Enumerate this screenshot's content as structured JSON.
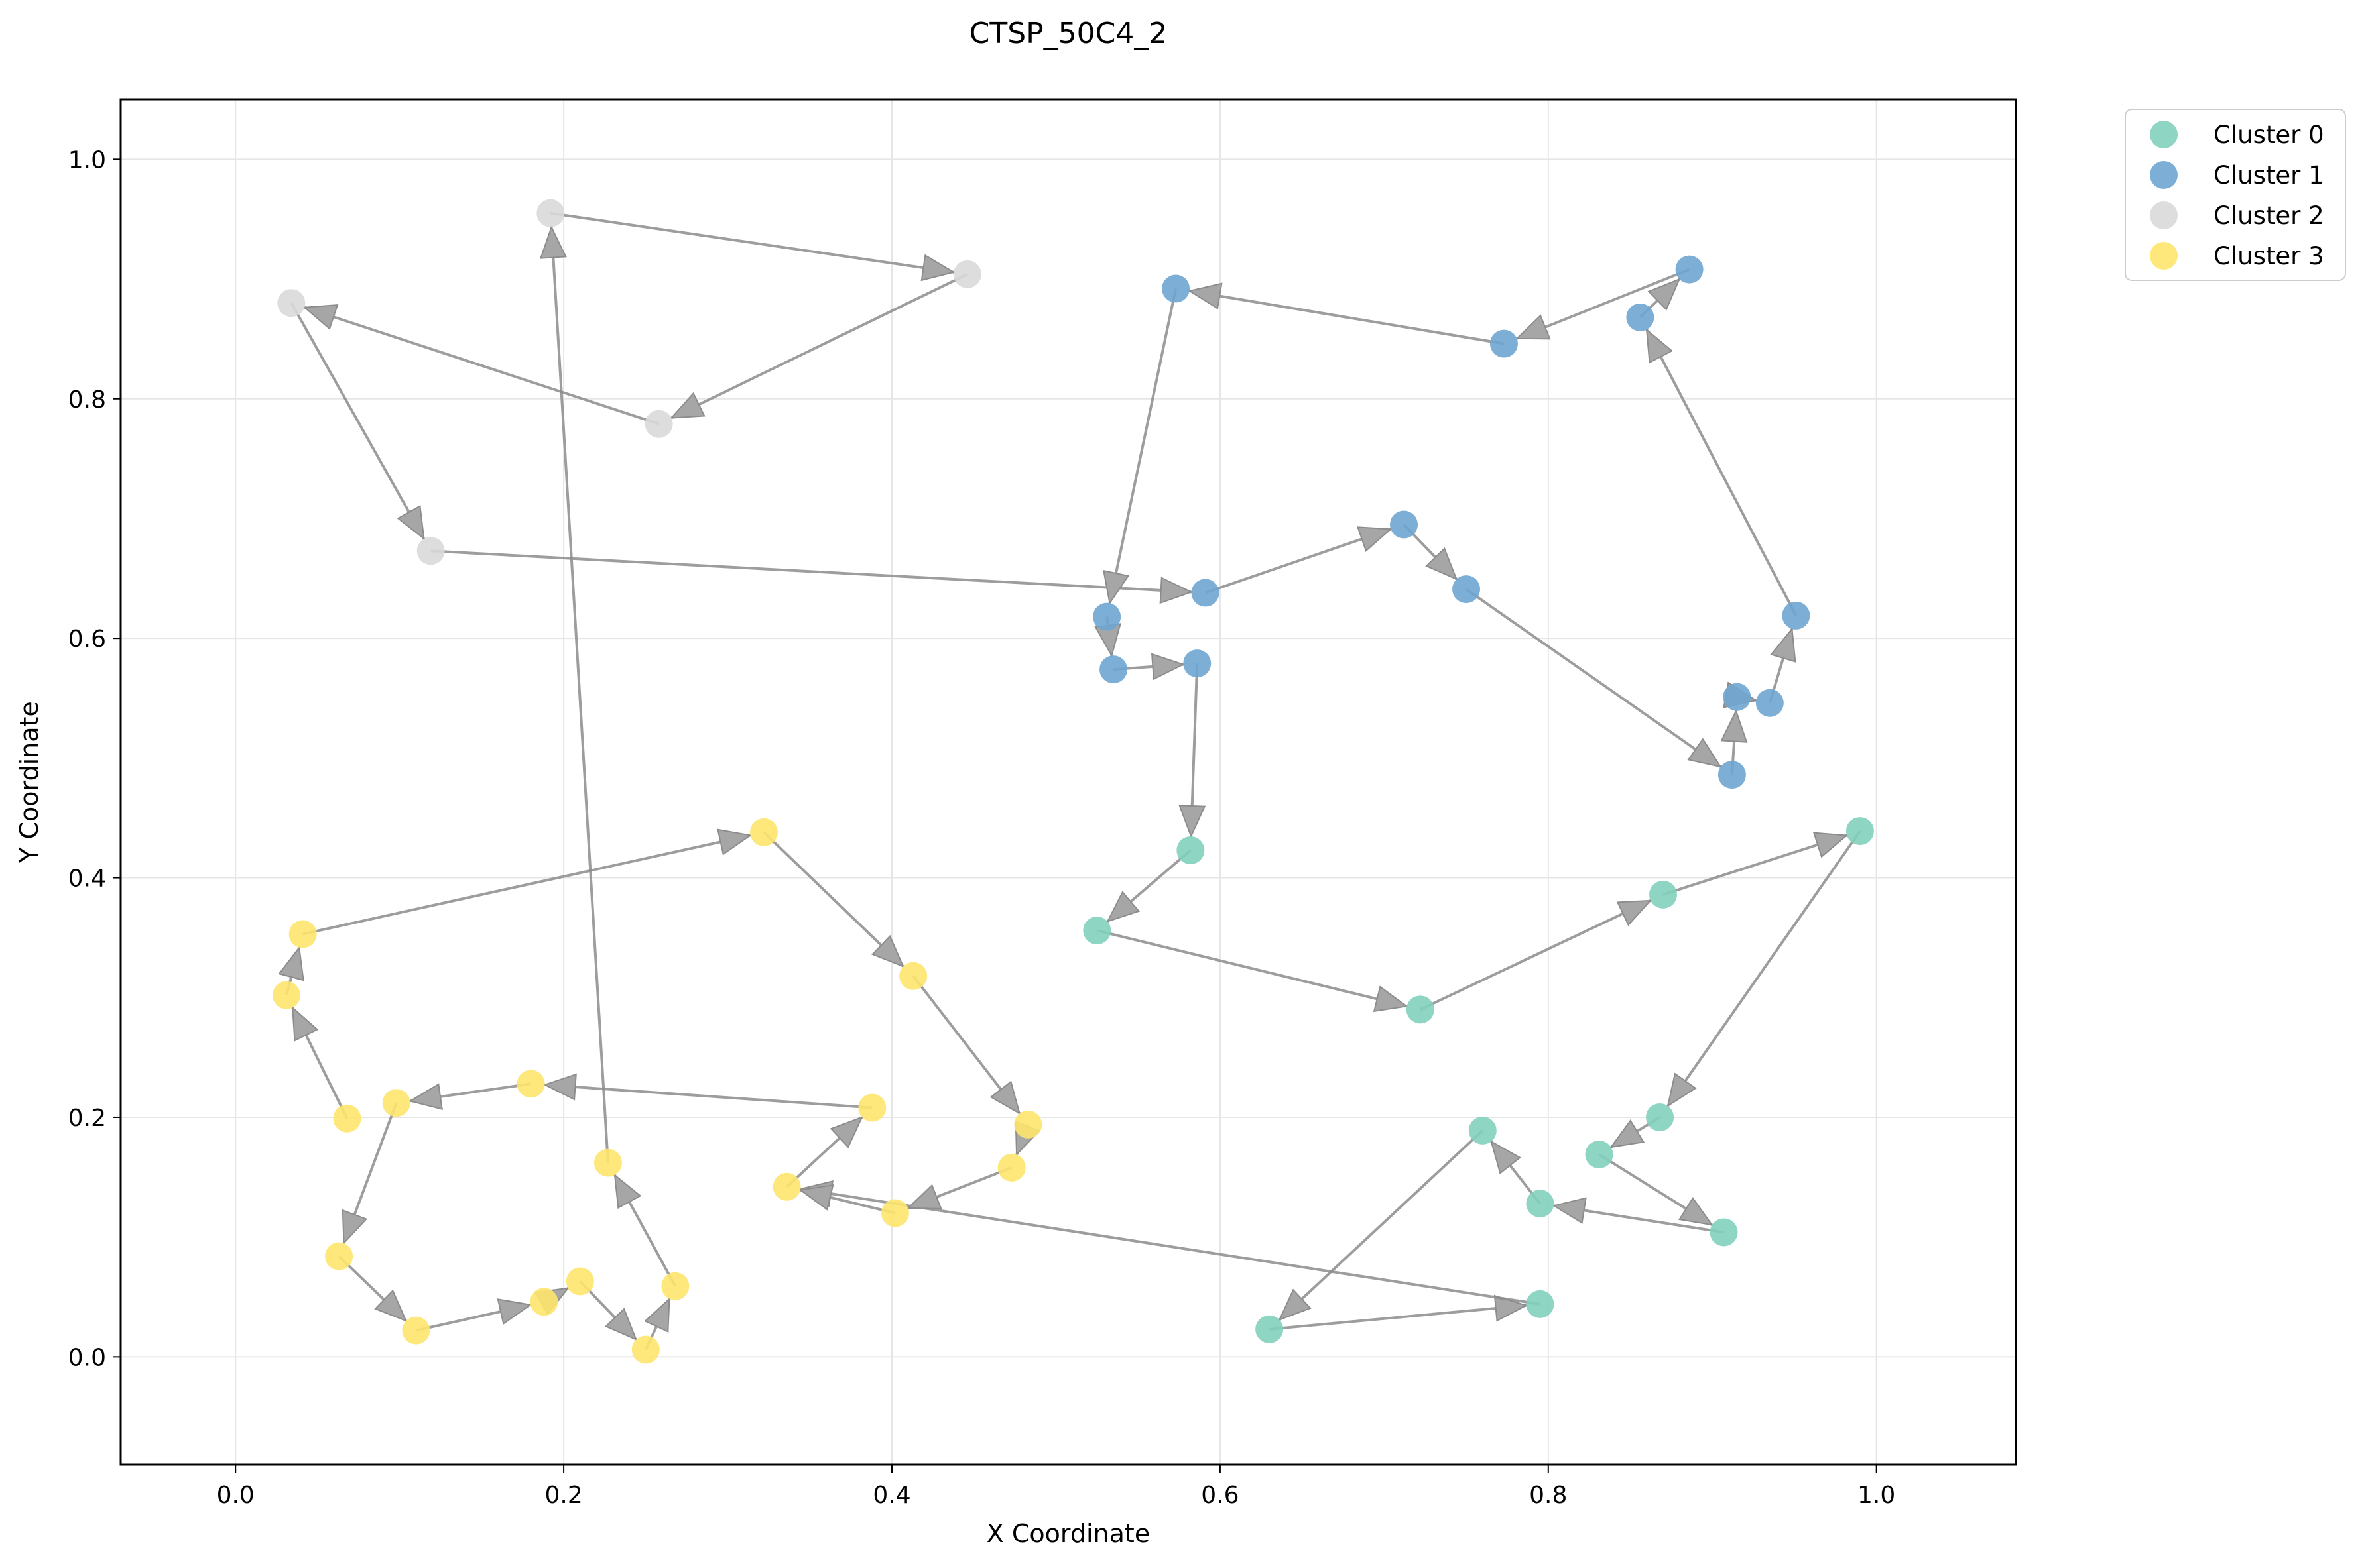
{
  "chart_data": {
    "type": "scatter",
    "title": "CTSP_50C4_2",
    "xlabel": "X Coordinate",
    "ylabel": "Y Coordinate",
    "xlim": [
      -0.07,
      1.085
    ],
    "ylim": [
      -0.09,
      1.05
    ],
    "xticks": [
      0.0,
      0.2,
      0.4,
      0.6,
      0.8,
      1.0
    ],
    "yticks": [
      0.0,
      0.2,
      0.4,
      0.6,
      0.8,
      1.0
    ],
    "xtick_labels": [
      "0.0",
      "0.2",
      "0.4",
      "0.6",
      "0.8",
      "1.0"
    ],
    "ytick_labels": [
      "0.0",
      "0.2",
      "0.4",
      "0.6",
      "0.8",
      "1.0"
    ],
    "grid": true,
    "legend_position": "outside-top-right",
    "route_color": "#8c8c8c",
    "series": [
      {
        "name": "Cluster 0",
        "color": "#82d0bd",
        "points": [
          [
            0.582,
            0.423
          ],
          [
            0.525,
            0.356
          ],
          [
            0.722,
            0.29
          ],
          [
            0.87,
            0.386
          ],
          [
            0.99,
            0.439
          ],
          [
            0.868,
            0.2
          ],
          [
            0.831,
            0.169
          ],
          [
            0.907,
            0.104
          ],
          [
            0.795,
            0.128
          ],
          [
            0.76,
            0.189
          ],
          [
            0.63,
            0.023
          ],
          [
            0.795,
            0.044
          ]
        ]
      },
      {
        "name": "Cluster 1",
        "color": "#6fa6d2",
        "points": [
          [
            0.591,
            0.638
          ],
          [
            0.712,
            0.695
          ],
          [
            0.75,
            0.641
          ],
          [
            0.912,
            0.486
          ],
          [
            0.915,
            0.551
          ],
          [
            0.935,
            0.546
          ],
          [
            0.951,
            0.619
          ],
          [
            0.856,
            0.868
          ],
          [
            0.886,
            0.908
          ],
          [
            0.773,
            0.846
          ],
          [
            0.573,
            0.892
          ],
          [
            0.531,
            0.618
          ],
          [
            0.535,
            0.574
          ],
          [
            0.586,
            0.579
          ]
        ]
      },
      {
        "name": "Cluster 2",
        "color": "#d9d9d9",
        "points": [
          [
            0.192,
            0.955
          ],
          [
            0.446,
            0.904
          ],
          [
            0.258,
            0.779
          ],
          [
            0.034,
            0.88
          ],
          [
            0.119,
            0.673
          ]
        ]
      },
      {
        "name": "Cluster 3",
        "color": "#fee66e",
        "points": [
          [
            0.336,
            0.142
          ],
          [
            0.388,
            0.208
          ],
          [
            0.18,
            0.228
          ],
          [
            0.098,
            0.212
          ],
          [
            0.063,
            0.084
          ],
          [
            0.11,
            0.022
          ],
          [
            0.188,
            0.046
          ],
          [
            0.21,
            0.063
          ],
          [
            0.25,
            0.006
          ],
          [
            0.268,
            0.059
          ],
          [
            0.227,
            0.162
          ],
          [
            0.068,
            0.199
          ],
          [
            0.031,
            0.302
          ],
          [
            0.041,
            0.353
          ],
          [
            0.322,
            0.438
          ],
          [
            0.413,
            0.318
          ],
          [
            0.483,
            0.194
          ],
          [
            0.473,
            0.158
          ],
          [
            0.402,
            0.12
          ]
        ]
      }
    ],
    "route": [
      [
        0.119,
        0.673
      ],
      [
        0.591,
        0.638
      ],
      [
        0.712,
        0.695
      ],
      [
        0.75,
        0.641
      ],
      [
        0.912,
        0.486
      ],
      [
        0.915,
        0.551
      ],
      [
        0.935,
        0.546
      ],
      [
        0.951,
        0.619
      ],
      [
        0.856,
        0.868
      ],
      [
        0.886,
        0.908
      ],
      [
        0.773,
        0.846
      ],
      [
        0.573,
        0.892
      ],
      [
        0.531,
        0.618
      ],
      [
        0.535,
        0.574
      ],
      [
        0.586,
        0.579
      ],
      [
        0.582,
        0.423
      ],
      [
        0.525,
        0.356
      ],
      [
        0.722,
        0.29
      ],
      [
        0.87,
        0.386
      ],
      [
        0.99,
        0.439
      ],
      [
        0.868,
        0.2
      ],
      [
        0.831,
        0.169
      ],
      [
        0.907,
        0.104
      ],
      [
        0.795,
        0.128
      ],
      [
        0.76,
        0.189
      ],
      [
        0.63,
        0.023
      ],
      [
        0.795,
        0.044
      ],
      [
        0.336,
        0.142
      ],
      [
        0.388,
        0.208
      ],
      [
        0.18,
        0.228
      ],
      [
        0.098,
        0.212
      ],
      [
        0.063,
        0.084
      ],
      [
        0.11,
        0.022
      ],
      [
        0.188,
        0.046
      ],
      [
        0.21,
        0.063
      ],
      [
        0.25,
        0.006
      ],
      [
        0.268,
        0.059
      ],
      [
        0.227,
        0.162
      ],
      [
        0.192,
        0.955
      ],
      [
        0.446,
        0.904
      ],
      [
        0.258,
        0.779
      ],
      [
        0.034,
        0.88
      ],
      [
        0.119,
        0.673
      ]
    ],
    "route_tail": [
      [
        0.068,
        0.199
      ],
      [
        0.031,
        0.302
      ],
      [
        0.041,
        0.353
      ],
      [
        0.322,
        0.438
      ],
      [
        0.413,
        0.318
      ],
      [
        0.483,
        0.194
      ],
      [
        0.473,
        0.158
      ],
      [
        0.402,
        0.12
      ],
      [
        0.336,
        0.142
      ]
    ]
  }
}
